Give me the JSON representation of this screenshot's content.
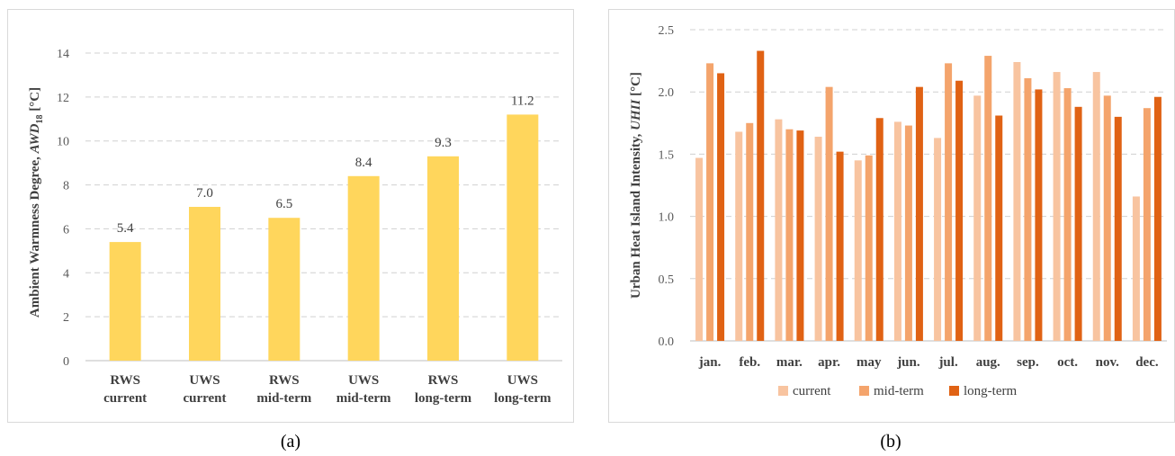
{
  "panels": {
    "a_label": "(a)",
    "b_label": "(b)"
  },
  "colors": {
    "bar_a": "#ffd65c",
    "current": "#f8c4a0",
    "mid_term": "#f4a46c",
    "long_term": "#e06214",
    "grid": "#d0d0d0"
  },
  "chart_data": [
    {
      "type": "bar",
      "categories": [
        [
          "RWS",
          "current"
        ],
        [
          "UWS",
          "current"
        ],
        [
          "RWS",
          "mid-term"
        ],
        [
          "UWS",
          "mid-term"
        ],
        [
          "RWS",
          "long-term"
        ],
        [
          "UWS",
          "long-term"
        ]
      ],
      "values": [
        5.4,
        7.0,
        6.5,
        8.4,
        9.3,
        11.2
      ],
      "data_labels": [
        "5.4",
        "7.0",
        "6.5",
        "8.4",
        "9.3",
        "11.2"
      ],
      "ylabel": "Ambient Warmness Degree, AWD18 [°C]",
      "ylabel_parts": {
        "prefix": "Ambient Warmness Degree, ",
        "italic": "AWD",
        "sub": "18",
        "suffix": " [°C]"
      },
      "yticks": [
        "0",
        "2",
        "4",
        "6",
        "8",
        "10",
        "12",
        "14"
      ],
      "ylim": [
        0,
        14
      ],
      "grid": true
    },
    {
      "type": "bar",
      "categories": [
        "jan.",
        "feb.",
        "mar.",
        "apr.",
        "may",
        "jun.",
        "jul.",
        "aug.",
        "sep.",
        "oct.",
        "nov.",
        "dec."
      ],
      "series": [
        {
          "name": "current",
          "values": [
            1.47,
            1.68,
            1.78,
            1.64,
            1.45,
            1.76,
            1.63,
            1.97,
            2.24,
            2.16,
            2.16,
            1.16
          ]
        },
        {
          "name": "mid-term",
          "values": [
            2.23,
            1.75,
            1.7,
            2.04,
            1.49,
            1.73,
            2.23,
            2.29,
            2.11,
            2.03,
            1.97,
            1.87
          ]
        },
        {
          "name": "long-term",
          "values": [
            2.15,
            2.33,
            1.69,
            1.52,
            1.79,
            2.04,
            2.09,
            1.81,
            2.02,
            1.88,
            1.8,
            1.96
          ]
        }
      ],
      "ylabel": "Urban Heat Island Intensity, UHII [°C]",
      "ylabel_parts": {
        "prefix": "Urban Heat Island Intensity, ",
        "italic": "UHII",
        "suffix": " [°C]"
      },
      "yticks": [
        "0.0",
        "0.5",
        "1.0",
        "1.5",
        "2.0",
        "2.5"
      ],
      "ylim": [
        0,
        2.5
      ],
      "grid": true,
      "legend_position": "bottom"
    }
  ]
}
